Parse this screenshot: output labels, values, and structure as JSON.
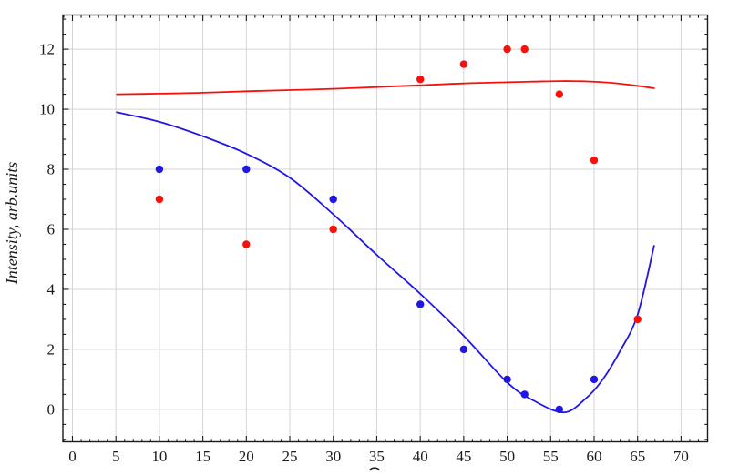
{
  "chart_data": {
    "type": "scatter",
    "title": "",
    "xlabel": "",
    "ylabel": "Intensity, arb.units",
    "x_axis_label_clipped_fragment_visible": true,
    "xlim": [
      -1.1,
      73.05
    ],
    "ylim": [
      -1.08,
      13.14
    ],
    "grid": true,
    "legend": "none",
    "x_ticks": {
      "major": [
        0,
        5,
        10,
        15,
        20,
        25,
        30,
        35,
        40,
        45,
        50,
        55,
        60,
        65,
        70
      ],
      "major_step": 5,
      "minor_step": 1
    },
    "y_ticks": {
      "major": [
        0,
        2,
        4,
        6,
        8,
        10,
        12
      ],
      "major_step": 2,
      "minor_step": 0.5
    },
    "series": [
      {
        "name": "red-curve",
        "kind": "line",
        "color": "#fa100a",
        "points": [
          [
            5.1,
            10.5
          ],
          [
            10,
            10.52
          ],
          [
            15,
            10.55
          ],
          [
            20,
            10.6
          ],
          [
            25,
            10.64
          ],
          [
            30,
            10.68
          ],
          [
            35,
            10.74
          ],
          [
            40,
            10.8
          ],
          [
            45,
            10.86
          ],
          [
            50,
            10.9
          ],
          [
            53,
            10.92
          ],
          [
            56,
            10.94
          ],
          [
            59,
            10.93
          ],
          [
            62,
            10.88
          ],
          [
            64.5,
            10.8
          ],
          [
            66.9,
            10.7
          ]
        ]
      },
      {
        "name": "blue-curve",
        "kind": "line",
        "color": "#2217e2",
        "points": [
          [
            5.1,
            9.9
          ],
          [
            10,
            9.58
          ],
          [
            15,
            9.1
          ],
          [
            20,
            8.52
          ],
          [
            25,
            7.72
          ],
          [
            30,
            6.5
          ],
          [
            35,
            5.15
          ],
          [
            40,
            3.85
          ],
          [
            45,
            2.45
          ],
          [
            50,
            0.9
          ],
          [
            53,
            0.3
          ],
          [
            56.5,
            -0.1
          ],
          [
            59,
            0.35
          ],
          [
            61,
            1.0
          ],
          [
            63,
            1.95
          ],
          [
            65,
            3.15
          ],
          [
            66.9,
            5.45
          ]
        ]
      },
      {
        "name": "red-points",
        "kind": "scatter",
        "color": "#fa100a",
        "points": [
          [
            10,
            7
          ],
          [
            20,
            5.5
          ],
          [
            30,
            6
          ],
          [
            40,
            11
          ],
          [
            45,
            11.5
          ],
          [
            50,
            12
          ],
          [
            52,
            12
          ],
          [
            56,
            10.5
          ],
          [
            60,
            8.3
          ],
          [
            65,
            3
          ]
        ]
      },
      {
        "name": "blue-points",
        "kind": "scatter",
        "color": "#2217e2",
        "points": [
          [
            10,
            8
          ],
          [
            20,
            8
          ],
          [
            30,
            7
          ],
          [
            40,
            3.5
          ],
          [
            45,
            2
          ],
          [
            50,
            1
          ],
          [
            52,
            0.5
          ],
          [
            56,
            0
          ],
          [
            60,
            1
          ]
        ]
      }
    ],
    "colors": {
      "background": "#ffffff",
      "grid": "#d4d4d4",
      "axis": "#1a1a1a",
      "tick_text": "#1a1a1a"
    }
  }
}
